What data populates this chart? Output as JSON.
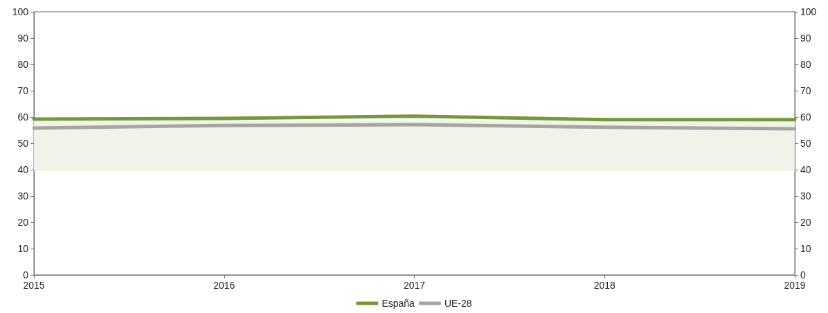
{
  "chart_data": {
    "type": "line",
    "x": [
      2015,
      2016,
      2017,
      2018,
      2019
    ],
    "series": [
      {
        "name": "España",
        "color": "#76973a",
        "values": [
          59.2,
          59.5,
          60.3,
          59,
          59
        ]
      },
      {
        "name": "UE-28",
        "color": "#a5a6a1",
        "values": [
          55.8,
          56.8,
          57.1,
          56.1,
          55.5
        ]
      }
    ],
    "xlim": [
      2015,
      2019
    ],
    "xticks": [
      2015,
      2016,
      2017,
      2018,
      2019
    ],
    "ylim": [
      0,
      100
    ],
    "yticks": [
      0,
      10,
      20,
      30,
      40,
      50,
      60,
      70,
      80,
      90,
      100
    ],
    "y2lim": [
      0,
      100
    ],
    "y2ticks": [
      0,
      10,
      20,
      30,
      40,
      50,
      60,
      70,
      80,
      90,
      100
    ],
    "bands": [
      {
        "axis": "y",
        "from": 39.5,
        "to": 58.7,
        "color": "#eff3e8"
      }
    ],
    "grid": false,
    "legend": "bottom",
    "marker": "none",
    "line_style": "solid"
  }
}
